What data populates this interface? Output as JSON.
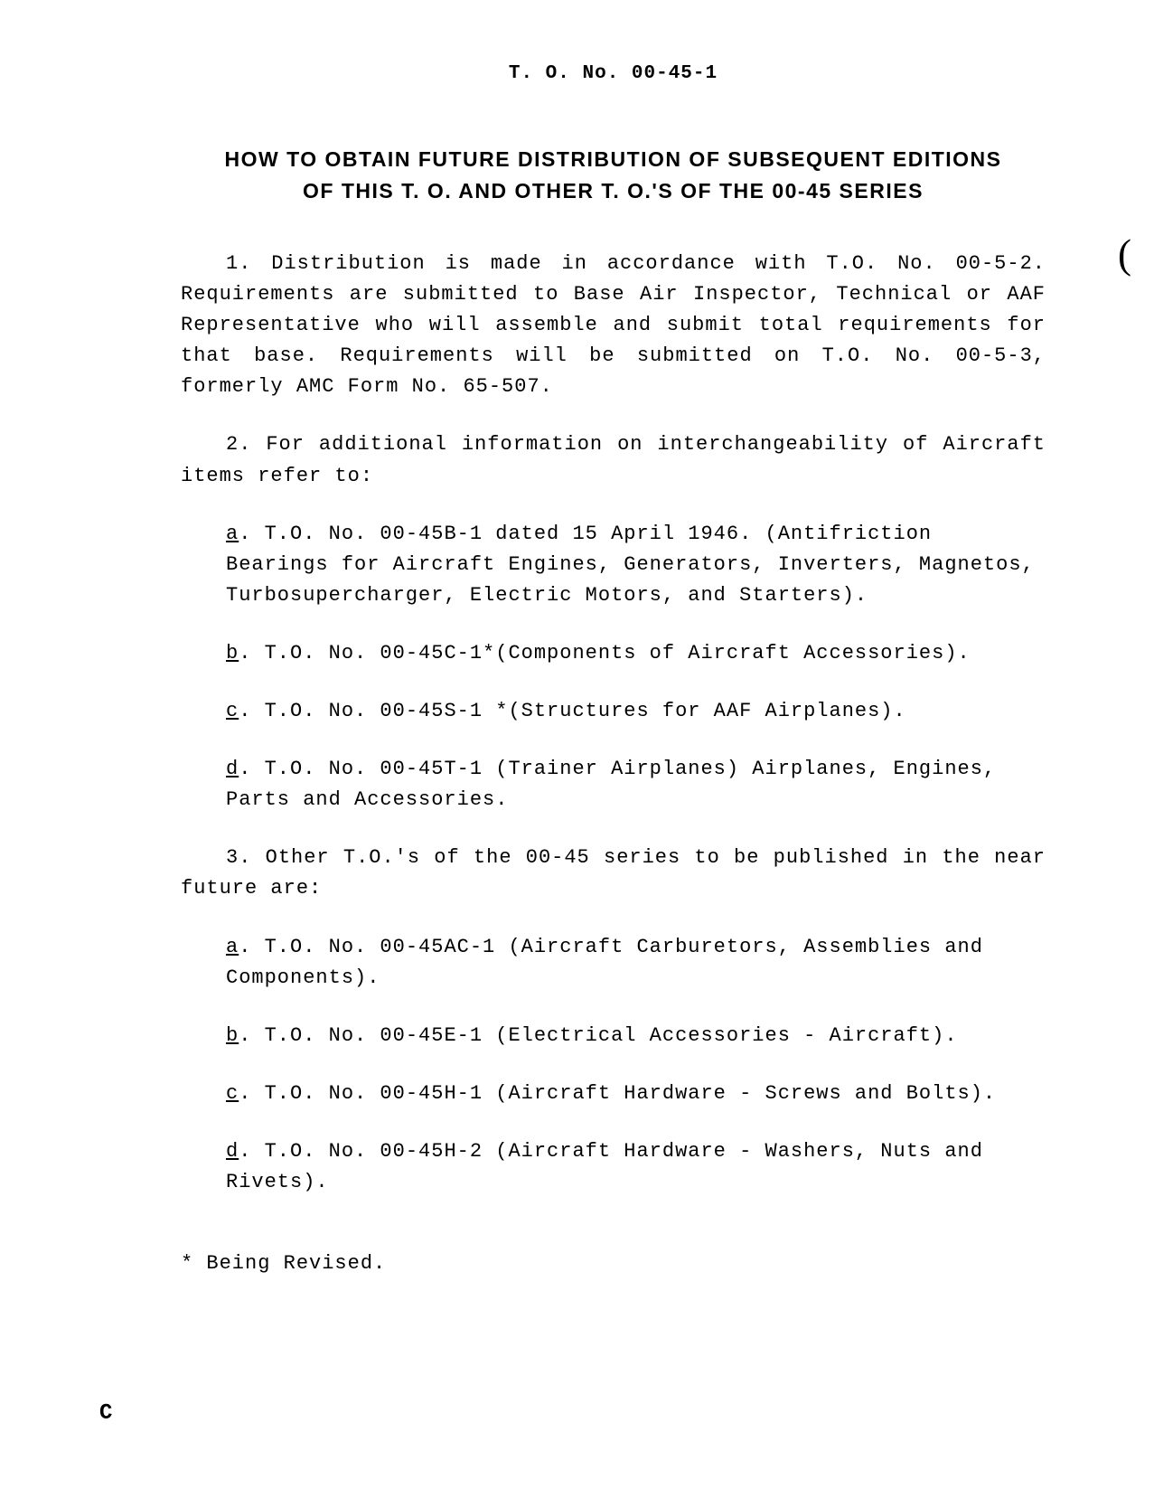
{
  "document": {
    "header": "T. O. No. 00-45-1",
    "title_line1": "HOW TO OBTAIN FUTURE DISTRIBUTION OF SUBSEQUENT EDITIONS",
    "title_line2": "OF THIS T. O. AND OTHER T. O.'S OF THE 00-45 SERIES",
    "para1": "1. Distribution is made in accordance with T.O. No. 00-5-2. Requirements are submitted to Base Air Inspector, Technical or AAF Representative who will assemble and submit total requirements for that base. Requirements will be submitted on T.O. No. 00-5-3, formerly AMC Form No. 65-507.",
    "para2": "2. For additional information on interchangeability of Aircraft items refer to:",
    "item2a_letter": "a",
    "item2a_text": ". T.O. No. 00-45B-1 dated 15 April 1946. (Antifriction Bearings for Aircraft Engines, Generators, Inverters, Magnetos, Turbosupercharger, Electric Motors, and Starters).",
    "item2b_letter": "b",
    "item2b_text": ". T.O. No. 00-45C-1*(Components of Aircraft Accessories).",
    "item2c_letter": "c",
    "item2c_text": ". T.O. No. 00-45S-1 *(Structures for AAF Airplanes).",
    "item2d_letter": "d",
    "item2d_text": ". T.O. No. 00-45T-1 (Trainer Airplanes) Airplanes, Engines, Parts and Accessories.",
    "para3": "3. Other T.O.'s of the 00-45 series to be published in the near future are:",
    "item3a_letter": "a",
    "item3a_text": ". T.O. No. 00-45AC-1 (Aircraft Carburetors, Assemblies and Components).",
    "item3b_letter": "b",
    "item3b_text": ". T.O. No. 00-45E-1 (Electrical Accessories - Aircraft).",
    "item3c_letter": "c",
    "item3c_text": ". T.O. No. 00-45H-1 (Aircraft Hardware - Screws and Bolts).",
    "item3d_letter": "d",
    "item3d_text": ". T.O. No. 00-45H-2 (Aircraft Hardware - Washers, Nuts and Rivets).",
    "footnote": "* Being Revised.",
    "page_letter": "C",
    "paren_mark": "("
  },
  "styling": {
    "background_color": "#ffffff",
    "text_color": "#000000",
    "body_font": "Courier New",
    "title_font": "Arial",
    "body_fontsize": 22,
    "title_fontsize": 23,
    "header_fontsize": 21,
    "line_height": 1.55
  }
}
